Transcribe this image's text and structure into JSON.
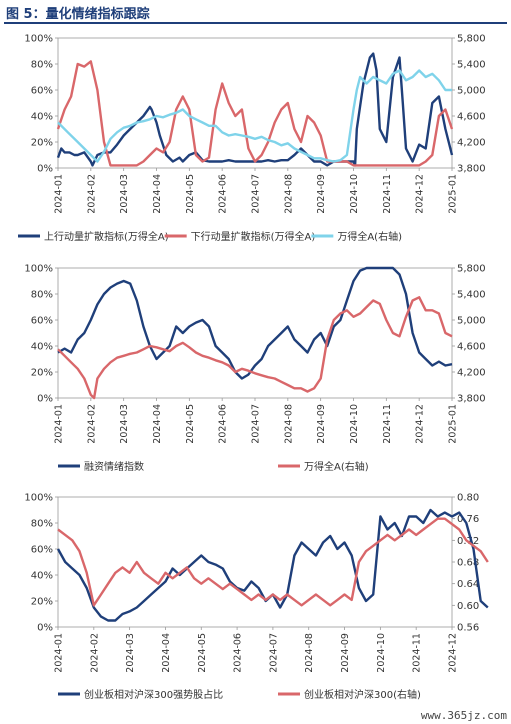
{
  "header": {
    "title": "图 5：量化情绪指标跟踪"
  },
  "watermark": "www.365jz.com",
  "chart_data": [
    {
      "type": "line",
      "id": "chart1",
      "categories": [
        "2024-01",
        "2024-02",
        "2024-03",
        "2024-04",
        "2024-05",
        "2024-06",
        "2024-07",
        "2024-08",
        "2024-09",
        "2024-10",
        "2024-11",
        "2024-12",
        "2025-01"
      ],
      "y_left": {
        "lim": [
          0,
          100
        ],
        "ticks": [
          "0%",
          "20%",
          "40%",
          "60%",
          "80%",
          "100%"
        ]
      },
      "y_right": {
        "lim": [
          3800,
          5800
        ],
        "ticks": [
          "3,800",
          "4,200",
          "4,600",
          "5,000",
          "5,400",
          "5,800"
        ]
      },
      "series": [
        {
          "name": "上行动量扩散指标(万得全A)",
          "axis": "left",
          "color": "#1f3f7a",
          "x": [
            0,
            0.1,
            0.2,
            0.35,
            0.5,
            0.6,
            0.8,
            1.0,
            1.05,
            1.2,
            1.4,
            1.6,
            1.8,
            2.0,
            2.2,
            2.4,
            2.6,
            2.8,
            2.85,
            3.0,
            3.1,
            3.3,
            3.5,
            3.7,
            3.8,
            4.0,
            4.2,
            4.4,
            4.6,
            4.8,
            5.0,
            5.2,
            5.4,
            5.6,
            5.8,
            6.0,
            6.2,
            6.4,
            6.6,
            6.8,
            7.0,
            7.2,
            7.4,
            7.6,
            7.8,
            8.0,
            8.2,
            8.4,
            8.6,
            8.8,
            9.0,
            9.05,
            9.1,
            9.3,
            9.5,
            9.6,
            9.7,
            9.8,
            10.0,
            10.2,
            10.4,
            10.5,
            10.6,
            10.8,
            11.0,
            11.2,
            11.4,
            11.6,
            11.8,
            12.0
          ],
          "y": [
            8,
            15,
            12,
            12,
            10,
            10,
            12,
            5,
            2,
            10,
            12,
            12,
            18,
            25,
            30,
            35,
            40,
            47,
            45,
            35,
            25,
            10,
            5,
            8,
            5,
            10,
            12,
            6,
            5,
            5,
            5,
            6,
            5,
            5,
            5,
            5,
            5,
            6,
            5,
            6,
            6,
            10,
            15,
            10,
            5,
            5,
            2,
            5,
            5,
            5,
            5,
            2,
            30,
            65,
            85,
            88,
            75,
            30,
            20,
            70,
            85,
            50,
            15,
            5,
            18,
            15,
            50,
            55,
            30,
            10
          ],
          "note": "approximate read-off"
        },
        {
          "name": "下行动量扩散指标(万得全A)",
          "axis": "left",
          "color": "#d9676a",
          "x": [
            0,
            0.2,
            0.4,
            0.6,
            0.8,
            1.0,
            1.2,
            1.4,
            1.6,
            1.8,
            2.0,
            2.2,
            2.4,
            2.6,
            2.8,
            3.0,
            3.2,
            3.4,
            3.6,
            3.8,
            4.0,
            4.2,
            4.4,
            4.6,
            4.8,
            5.0,
            5.2,
            5.4,
            5.6,
            5.8,
            6.0,
            6.2,
            6.4,
            6.6,
            6.8,
            7.0,
            7.2,
            7.4,
            7.6,
            7.8,
            8.0,
            8.2,
            8.4,
            8.6,
            8.8,
            9.0,
            9.2,
            9.4,
            9.6,
            9.8,
            10.0,
            10.2,
            10.4,
            10.6,
            10.8,
            11.0,
            11.2,
            11.4,
            11.6,
            11.8,
            12.0
          ],
          "y": [
            30,
            45,
            55,
            80,
            78,
            82,
            60,
            20,
            2,
            2,
            2,
            2,
            2,
            5,
            10,
            15,
            12,
            20,
            45,
            55,
            45,
            10,
            5,
            8,
            45,
            65,
            50,
            40,
            45,
            15,
            5,
            10,
            20,
            35,
            45,
            50,
            30,
            20,
            40,
            35,
            25,
            5,
            5,
            5,
            5,
            2,
            2,
            2,
            2,
            2,
            2,
            2,
            2,
            2,
            2,
            2,
            5,
            10,
            40,
            45,
            30
          ]
        },
        {
          "name": "万得全A(右轴)",
          "axis": "right",
          "color": "#7fd3ea",
          "x": [
            0,
            0.3,
            0.6,
            1.0,
            1.2,
            1.4,
            1.6,
            1.8,
            2.0,
            2.2,
            2.4,
            2.6,
            2.8,
            3.0,
            3.2,
            3.4,
            3.6,
            3.8,
            4.0,
            4.2,
            4.4,
            4.6,
            4.8,
            5.0,
            5.2,
            5.4,
            5.6,
            5.8,
            6.0,
            6.2,
            6.4,
            6.6,
            6.8,
            7.0,
            7.2,
            7.4,
            7.6,
            7.8,
            8.0,
            8.2,
            8.4,
            8.6,
            8.8,
            9.0,
            9.1,
            9.2,
            9.4,
            9.6,
            9.8,
            10.0,
            10.2,
            10.4,
            10.6,
            10.8,
            11.0,
            11.2,
            11.4,
            11.6,
            11.8,
            12.0
          ],
          "y": [
            4500,
            4350,
            4200,
            4000,
            3900,
            4050,
            4250,
            4350,
            4420,
            4450,
            4500,
            4520,
            4550,
            4600,
            4580,
            4620,
            4650,
            4700,
            4600,
            4550,
            4500,
            4450,
            4450,
            4350,
            4300,
            4320,
            4300,
            4280,
            4250,
            4280,
            4230,
            4200,
            4150,
            4180,
            4100,
            4050,
            4000,
            3950,
            3950,
            3920,
            3900,
            3920,
            4000,
            4700,
            5000,
            5200,
            5100,
            5200,
            5150,
            5100,
            5250,
            5300,
            5150,
            5200,
            5300,
            5200,
            5250,
            5150,
            5000,
            5000
          ]
        }
      ],
      "legend": [
        "上行动量扩散指标(万得全A)",
        "下行动量扩散指标(万得全A)",
        "万得全A(右轴)"
      ]
    },
    {
      "type": "line",
      "id": "chart2",
      "categories": [
        "2024-01",
        "2024-02",
        "2024-03",
        "2024-04",
        "2024-05",
        "2024-06",
        "2024-07",
        "2024-08",
        "2024-09",
        "2024-10",
        "2024-11",
        "2024-12",
        "2025-01"
      ],
      "y_left": {
        "lim": [
          0,
          100
        ],
        "ticks": [
          "0%",
          "20%",
          "40%",
          "60%",
          "80%",
          "100%"
        ]
      },
      "y_right": {
        "lim": [
          3800,
          5800
        ],
        "ticks": [
          "3,800",
          "4,200",
          "4,600",
          "5,000",
          "5,400",
          "5,800"
        ]
      },
      "series": [
        {
          "name": "融资情绪指数",
          "axis": "left",
          "color": "#1f3f7a",
          "x": [
            0,
            0.2,
            0.4,
            0.6,
            0.8,
            1.0,
            1.2,
            1.4,
            1.6,
            1.8,
            2.0,
            2.2,
            2.4,
            2.6,
            2.8,
            3.0,
            3.2,
            3.4,
            3.6,
            3.8,
            4.0,
            4.2,
            4.4,
            4.6,
            4.8,
            5.0,
            5.2,
            5.4,
            5.6,
            5.8,
            6.0,
            6.2,
            6.4,
            6.6,
            6.8,
            7.0,
            7.2,
            7.4,
            7.6,
            7.8,
            8.0,
            8.2,
            8.4,
            8.6,
            8.8,
            9.0,
            9.2,
            9.4,
            9.6,
            9.8,
            10.0,
            10.2,
            10.4,
            10.6,
            10.8,
            11.0,
            11.2,
            11.4,
            11.6,
            11.8,
            12.0
          ],
          "y": [
            35,
            38,
            35,
            45,
            50,
            60,
            72,
            80,
            85,
            88,
            90,
            88,
            75,
            55,
            40,
            30,
            35,
            40,
            55,
            50,
            55,
            58,
            60,
            55,
            40,
            35,
            30,
            20,
            15,
            18,
            25,
            30,
            40,
            45,
            50,
            55,
            45,
            40,
            35,
            45,
            50,
            40,
            55,
            60,
            75,
            90,
            98,
            100,
            100,
            100,
            100,
            100,
            95,
            80,
            50,
            35,
            30,
            25,
            28,
            25,
            26
          ]
        },
        {
          "name": "万得全A(右轴)",
          "axis": "right",
          "color": "#d9676a",
          "x": [
            0,
            0.2,
            0.4,
            0.6,
            0.8,
            1.0,
            1.1,
            1.2,
            1.4,
            1.6,
            1.8,
            2.0,
            2.2,
            2.4,
            2.6,
            2.8,
            3.0,
            3.2,
            3.4,
            3.6,
            3.8,
            4.0,
            4.2,
            4.4,
            4.6,
            4.8,
            5.0,
            5.2,
            5.4,
            5.6,
            5.8,
            6.0,
            6.2,
            6.4,
            6.6,
            6.8,
            7.0,
            7.2,
            7.4,
            7.6,
            7.8,
            8.0,
            8.2,
            8.4,
            8.6,
            8.8,
            9.0,
            9.2,
            9.4,
            9.6,
            9.8,
            10.0,
            10.2,
            10.4,
            10.6,
            10.8,
            11.0,
            11.2,
            11.4,
            11.6,
            11.8,
            12.0
          ],
          "y": [
            4550,
            4450,
            4350,
            4250,
            4100,
            3850,
            3800,
            4100,
            4250,
            4350,
            4420,
            4450,
            4480,
            4500,
            4550,
            4600,
            4580,
            4550,
            4520,
            4600,
            4650,
            4580,
            4500,
            4450,
            4420,
            4380,
            4350,
            4300,
            4200,
            4250,
            4220,
            4180,
            4150,
            4120,
            4100,
            4050,
            4000,
            3950,
            3950,
            3900,
            3950,
            4100,
            4700,
            5000,
            5100,
            5150,
            5050,
            5100,
            5200,
            5300,
            5250,
            5000,
            4800,
            4750,
            5050,
            5300,
            5350,
            5150,
            5150,
            5100,
            4800,
            4750
          ]
        }
      ],
      "legend": [
        "融资情绪指数",
        "万得全A(右轴)"
      ]
    },
    {
      "type": "line",
      "id": "chart3",
      "categories": [
        "2024-01",
        "2024-02",
        "2024-03",
        "2024-04",
        "2024-05",
        "2024-06",
        "2024-07",
        "2024-08",
        "2024-09",
        "2024-10",
        "2024-11",
        "2024-12"
      ],
      "y_left": {
        "lim": [
          0,
          100
        ],
        "ticks": [
          "0%",
          "20%",
          "40%",
          "60%",
          "80%",
          "100%"
        ]
      },
      "y_right": {
        "lim": [
          0.56,
          0.8
        ],
        "ticks": [
          "0.56",
          "0.60",
          "0.64",
          "0.68",
          "0.72",
          "0.76",
          "0.80"
        ]
      },
      "series": [
        {
          "name": "创业板相对沪深300强势股占比",
          "axis": "left",
          "color": "#1f3f7a",
          "x": [
            0,
            0.2,
            0.4,
            0.6,
            0.8,
            1.0,
            1.2,
            1.4,
            1.6,
            1.8,
            2.0,
            2.2,
            2.4,
            2.6,
            2.8,
            3.0,
            3.2,
            3.4,
            3.6,
            3.8,
            4.0,
            4.2,
            4.4,
            4.6,
            4.8,
            5.0,
            5.2,
            5.4,
            5.6,
            5.8,
            6.0,
            6.2,
            6.4,
            6.6,
            6.8,
            7.0,
            7.2,
            7.4,
            7.6,
            7.8,
            8.0,
            8.2,
            8.4,
            8.6,
            8.8,
            9.0,
            9.2,
            9.4,
            9.6,
            9.8,
            10.0,
            10.2,
            10.4,
            10.6,
            10.8,
            11.0,
            11.2,
            11.4,
            11.6,
            11.8,
            12.0
          ],
          "y": [
            60,
            50,
            45,
            40,
            30,
            15,
            8,
            5,
            5,
            10,
            12,
            15,
            20,
            25,
            30,
            35,
            45,
            40,
            45,
            50,
            55,
            50,
            48,
            45,
            35,
            30,
            28,
            35,
            30,
            20,
            25,
            15,
            25,
            55,
            65,
            60,
            55,
            65,
            70,
            60,
            65,
            55,
            30,
            20,
            25,
            85,
            75,
            80,
            70,
            85,
            85,
            80,
            90,
            85,
            88,
            85,
            88,
            80,
            60,
            20,
            15
          ]
        },
        {
          "name": "创业板相对沪深300(右轴)",
          "axis": "right",
          "color": "#d9676a",
          "x": [
            0,
            0.2,
            0.4,
            0.6,
            0.8,
            1.0,
            1.2,
            1.4,
            1.6,
            1.8,
            2.0,
            2.2,
            2.4,
            2.6,
            2.8,
            3.0,
            3.2,
            3.4,
            3.6,
            3.8,
            4.0,
            4.2,
            4.4,
            4.6,
            4.8,
            5.0,
            5.2,
            5.4,
            5.6,
            5.8,
            6.0,
            6.2,
            6.4,
            6.6,
            6.8,
            7.0,
            7.2,
            7.4,
            7.6,
            7.8,
            8.0,
            8.2,
            8.4,
            8.6,
            8.8,
            9.0,
            9.2,
            9.4,
            9.6,
            9.8,
            10.0,
            10.2,
            10.4,
            10.6,
            10.8,
            11.0,
            11.2,
            11.4,
            11.6,
            11.8,
            12.0
          ],
          "y": [
            0.74,
            0.73,
            0.72,
            0.7,
            0.66,
            0.6,
            0.62,
            0.64,
            0.66,
            0.67,
            0.66,
            0.68,
            0.66,
            0.65,
            0.64,
            0.66,
            0.65,
            0.66,
            0.67,
            0.65,
            0.64,
            0.65,
            0.64,
            0.63,
            0.64,
            0.63,
            0.62,
            0.61,
            0.62,
            0.61,
            0.62,
            0.61,
            0.62,
            0.61,
            0.6,
            0.61,
            0.62,
            0.61,
            0.6,
            0.61,
            0.62,
            0.61,
            0.68,
            0.7,
            0.71,
            0.72,
            0.73,
            0.72,
            0.73,
            0.74,
            0.73,
            0.74,
            0.75,
            0.76,
            0.76,
            0.75,
            0.74,
            0.72,
            0.71,
            0.7,
            0.68
          ]
        }
      ],
      "legend": [
        "创业板相对沪深300强势股占比",
        "创业板相对沪深300(右轴)"
      ]
    }
  ]
}
